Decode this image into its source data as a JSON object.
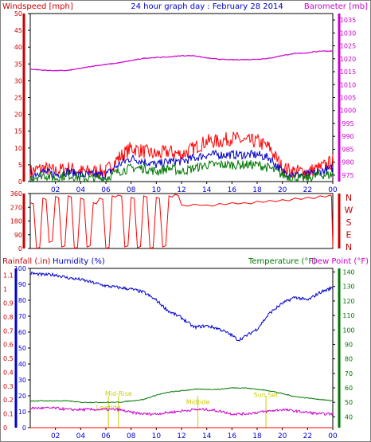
{
  "title": "24 hour graph day : February 28 2014",
  "colors": {
    "red": "#ff0000",
    "darkred": "#cc0000",
    "blue": "#0000cc",
    "magenta": "#cc00cc",
    "green": "#007700",
    "yellow": "#cccc00",
    "grid": "#dddddd"
  },
  "chart_data": [
    {
      "type": "line",
      "name": "wind-barometer",
      "left_label": "Windspeed [mph]",
      "right_label": "Barometer [mb]",
      "x_ticks": [
        "02",
        "04",
        "06",
        "08",
        "10",
        "12",
        "14",
        "16",
        "18",
        "20",
        "22",
        "00"
      ],
      "y_left_ticks": [
        "0",
        "5",
        "10",
        "15",
        "20",
        "25",
        "30",
        "35",
        "40",
        "45",
        "50"
      ],
      "y_right_ticks": [
        "975",
        "980",
        "985",
        "990",
        "995",
        "1000",
        "1005",
        "1010",
        "1015",
        "1020",
        "1025",
        "1030",
        "1035"
      ],
      "ylim_left": [
        0,
        50
      ],
      "ylim_right": [
        972.5,
        1037.5
      ],
      "series": [
        {
          "key": "gust",
          "color": "red",
          "axis": "left",
          "x": [
            0,
            1,
            2,
            3,
            4,
            5,
            6,
            7,
            8,
            9,
            10,
            11,
            12,
            13,
            14,
            15,
            16,
            17,
            18,
            19,
            20,
            21,
            22,
            23,
            24
          ],
          "values": [
            3,
            4,
            3,
            4,
            3,
            3,
            3,
            7,
            10,
            9,
            8,
            9,
            8,
            10,
            12,
            12,
            13,
            12,
            12,
            10,
            4,
            3,
            3,
            4,
            6
          ]
        },
        {
          "key": "speed",
          "color": "blue",
          "axis": "left",
          "x": [
            0,
            1,
            2,
            3,
            4,
            5,
            6,
            7,
            8,
            9,
            10,
            11,
            12,
            13,
            14,
            15,
            16,
            17,
            18,
            19,
            20,
            21,
            22,
            23,
            24
          ],
          "values": [
            2,
            3,
            2,
            3,
            2,
            2,
            2,
            5,
            7,
            6,
            5,
            6,
            6,
            7,
            8,
            8,
            8,
            8,
            8,
            7,
            3,
            2,
            2,
            3,
            4
          ]
        },
        {
          "key": "average",
          "color": "green",
          "axis": "left",
          "x": [
            0,
            1,
            2,
            3,
            4,
            5,
            6,
            7,
            8,
            9,
            10,
            11,
            12,
            13,
            14,
            15,
            16,
            17,
            18,
            19,
            20,
            21,
            22,
            23,
            24
          ],
          "values": [
            1,
            2,
            1,
            2,
            1,
            1,
            1,
            3,
            4,
            4,
            3,
            4,
            3,
            4,
            5,
            5,
            5,
            5,
            5,
            4,
            2,
            1,
            1,
            2,
            2
          ]
        },
        {
          "key": "barometer",
          "color": "magenta",
          "axis": "right",
          "x": [
            0,
            1,
            2,
            3,
            4,
            5,
            6,
            7,
            8,
            9,
            10,
            11,
            12,
            13,
            14,
            15,
            16,
            17,
            18,
            19,
            20,
            21,
            22,
            23,
            24
          ],
          "values": [
            1016,
            1015.6,
            1015.4,
            1015.5,
            1016.3,
            1017.2,
            1017.8,
            1018.4,
            1019.3,
            1020.2,
            1020.5,
            1020.7,
            1021.2,
            1021.2,
            1020.3,
            1019.8,
            1019.6,
            1019.7,
            1019.8,
            1020.2,
            1021.3,
            1022,
            1022.3,
            1023,
            1023
          ]
        }
      ]
    },
    {
      "type": "line",
      "name": "wind-direction",
      "y_left_ticks": [
        "360",
        "270",
        "180",
        "90",
        "0"
      ],
      "y_right_labels": [
        "N",
        "W",
        "S",
        "E",
        "N"
      ],
      "ylim_left": [
        0,
        360
      ],
      "series": [
        {
          "key": "direction",
          "color": "red",
          "axis": "left",
          "x": [
            0,
            0.5,
            1,
            1.5,
            2,
            2.5,
            3,
            3.5,
            4,
            4.5,
            5,
            5.5,
            6,
            6.5,
            7,
            7.5,
            8,
            8.5,
            9,
            9.5,
            10,
            10.5,
            11,
            11.5,
            12,
            13,
            14,
            15,
            16,
            17,
            18,
            19,
            20,
            21,
            22,
            23,
            23.8,
            24
          ],
          "values": [
            300,
            0,
            330,
            40,
            340,
            10,
            345,
            0,
            330,
            10,
            300,
            330,
            0,
            345,
            350,
            10,
            335,
            5,
            345,
            0,
            335,
            10,
            345,
            355,
            285,
            290,
            285,
            295,
            300,
            300,
            310,
            315,
            320,
            330,
            335,
            345,
            350,
            10
          ]
        }
      ]
    },
    {
      "type": "line",
      "name": "rain-humidity-temperature",
      "left_label_rain": "Rainfall (.in)",
      "left_label_humidity": "Humidity (%)",
      "right_label_temp": "Temperature (°F)",
      "right_label_dew": "Dew Point (°F)",
      "x_ticks": [
        "02",
        "04",
        "06",
        "08",
        "10",
        "12",
        "14",
        "16",
        "18",
        "20",
        "22",
        "00"
      ],
      "y_rain_ticks": [
        "0",
        "0.1",
        "0.2",
        "0.3",
        "0.4",
        "0.5",
        "0.6",
        "0.7",
        "0.8",
        "0.9",
        "1",
        "1.1"
      ],
      "y_humidity_ticks": [
        "0",
        "10",
        "20",
        "30",
        "40",
        "50",
        "60",
        "70",
        "80",
        "90",
        "100"
      ],
      "y_temp_ticks": [
        "40",
        "50",
        "60",
        "70",
        "80",
        "90",
        "100",
        "110",
        "120",
        "130",
        "140"
      ],
      "ylim_rain": [
        0,
        1.15
      ],
      "ylim_humidity": [
        0,
        100
      ],
      "ylim_temp": [
        32.5,
        142.5
      ],
      "annotations": [
        {
          "label": "Mid-Rise",
          "x": 7.0,
          "level": 0.23
        },
        {
          "label": "Lowtide",
          "x": 6.2,
          "level": 0.13
        },
        {
          "label": "Midtide",
          "x": 13.3,
          "level": 0.17
        },
        {
          "label": "Sun Set",
          "x": 18.7,
          "level": 0.22
        }
      ],
      "series": [
        {
          "key": "humidity",
          "color": "blue",
          "axis": "humidity",
          "x": [
            0,
            1,
            2,
            3,
            4,
            5,
            6,
            7,
            8,
            9,
            10,
            11,
            12,
            13,
            14,
            15,
            16,
            16.5,
            17,
            18,
            19,
            20,
            21,
            22,
            23,
            24
          ],
          "values": [
            97,
            96,
            96,
            94,
            93,
            91,
            89,
            88,
            87,
            85,
            80,
            73,
            69,
            63,
            64,
            62,
            58,
            55,
            57,
            62,
            72,
            78,
            82,
            80,
            85,
            88
          ]
        },
        {
          "key": "temperature",
          "color": "green",
          "axis": "temp",
          "x": [
            0,
            1,
            2,
            3,
            4,
            5,
            6,
            7,
            8,
            9,
            10,
            11,
            12,
            13,
            14,
            15,
            16,
            17,
            18,
            19,
            20,
            21,
            22,
            23,
            24
          ],
          "values": [
            51,
            51,
            51,
            51,
            50,
            50,
            50,
            50,
            51,
            52,
            55,
            57,
            58,
            59,
            59,
            59,
            60,
            60,
            59,
            58,
            56,
            54,
            53,
            52,
            51
          ]
        },
        {
          "key": "dewpoint",
          "color": "magenta",
          "axis": "temp",
          "x": [
            0,
            1,
            2,
            3,
            4,
            5,
            6,
            7,
            8,
            9,
            10,
            11,
            12,
            13,
            14,
            15,
            16,
            17,
            18,
            19,
            20,
            21,
            22,
            23,
            24
          ],
          "values": [
            46,
            46,
            46,
            45,
            45,
            45,
            45,
            45,
            43,
            42,
            42,
            43,
            44,
            45,
            45,
            44,
            42,
            42,
            43,
            44,
            45,
            44,
            43,
            42,
            42
          ]
        },
        {
          "key": "rain",
          "color": "red",
          "axis": "rain",
          "x": [
            0,
            24
          ],
          "values": [
            0,
            0
          ]
        }
      ]
    }
  ]
}
